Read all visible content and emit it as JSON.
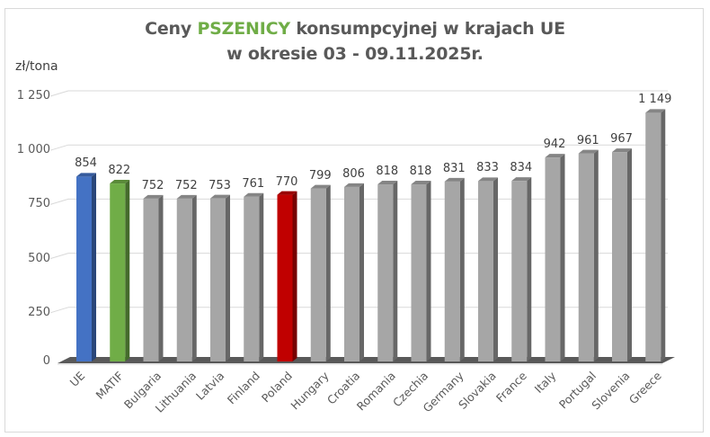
{
  "title": {
    "line1_prefix": "Ceny ",
    "line1_highlight": "PSZENICY",
    "line1_suffix": " konsumpcyjnej w krajach UE",
    "line2": "w okresie 03 - 09.11.2025r."
  },
  "colors": {
    "highlight_text": "#70ad47",
    "ue": "#4472c4",
    "matif": "#70ad47",
    "poland": "#c00000",
    "default": "#a6a6a6",
    "floor": "#595959"
  },
  "y_axis": {
    "unit_label": "zł/tona",
    "ticks": [
      "0",
      "250",
      "500",
      "750",
      "1 000",
      "1 250"
    ]
  },
  "chart_data": {
    "type": "bar",
    "title": "Ceny PSZENICY konsumpcyjnej w krajach UE w okresie 03 - 09.11.2025r.",
    "xlabel": "",
    "ylabel": "zł/tona",
    "ylim": [
      0,
      1250
    ],
    "yticks": [
      0,
      250,
      500,
      750,
      1000,
      1250
    ],
    "grid": true,
    "legend": "none",
    "style": "3d-column",
    "categories": [
      "UE",
      "MATIF",
      "Bulgaria",
      "Lithuania",
      "Latvia",
      "Finland",
      "Poland",
      "Hungary",
      "Croatia",
      "Romania",
      "Czechia",
      "Germany",
      "Slovakia",
      "France",
      "Italy",
      "Portugal",
      "Slovenia",
      "Greece"
    ],
    "values": [
      854,
      822,
      752,
      752,
      753,
      761,
      770,
      799,
      806,
      818,
      818,
      831,
      833,
      834,
      942,
      961,
      967,
      1149
    ],
    "value_labels": [
      "854",
      "822",
      "752",
      "752",
      "753",
      "761",
      "770",
      "799",
      "806",
      "818",
      "818",
      "831",
      "833",
      "834",
      "942",
      "961",
      "967",
      "1 149"
    ],
    "bar_colors": [
      "#4472c4",
      "#70ad47",
      "#a6a6a6",
      "#a6a6a6",
      "#a6a6a6",
      "#a6a6a6",
      "#c00000",
      "#a6a6a6",
      "#a6a6a6",
      "#a6a6a6",
      "#a6a6a6",
      "#a6a6a6",
      "#a6a6a6",
      "#a6a6a6",
      "#a6a6a6",
      "#a6a6a6",
      "#a6a6a6",
      "#a6a6a6"
    ]
  }
}
